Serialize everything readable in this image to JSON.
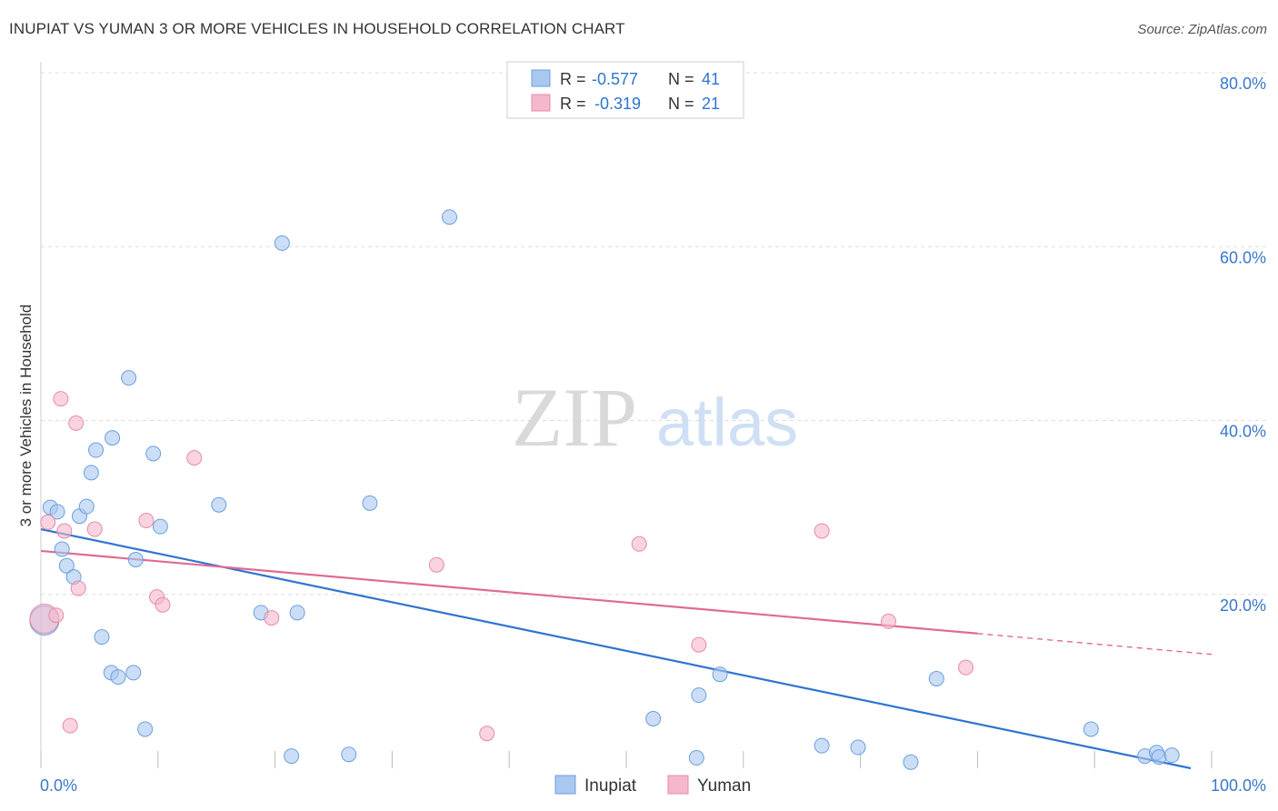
{
  "header": {
    "title": "INUPIAT VS YUMAN 3 OR MORE VEHICLES IN HOUSEHOLD CORRELATION CHART",
    "source": "Source: ZipAtlas.com"
  },
  "watermark": {
    "zip": "ZIP",
    "atlas": "atlas"
  },
  "legend_box": {
    "rows": [
      {
        "r_label": "R = ",
        "r_value": "-0.577",
        "n_label": "N = ",
        "n_value": "41",
        "color": "#a9c8f0"
      },
      {
        "r_label": "R = ",
        "r_value": "-0.319",
        "n_label": "N = ",
        "n_value": "21",
        "color": "#f5b8cb"
      }
    ]
  },
  "bottom_legend": [
    {
      "label": "Inupiat",
      "color": "#a9c8f0"
    },
    {
      "label": "Yuman",
      "color": "#f5b8cb"
    }
  ],
  "colors": {
    "inupiat_fill": "#a9c8f0",
    "inupiat_stroke": "#6a9fe0",
    "inupiat_line": "#2f74d0",
    "yuman_fill": "#f5b8cb",
    "yuman_stroke": "#e88aa8",
    "yuman_line": "#e06a93",
    "axis_text": "#3a78c9",
    "grid": "#dddddd"
  },
  "chart_data": {
    "type": "scatter",
    "title": "INUPIAT VS YUMAN 3 OR MORE VEHICLES IN HOUSEHOLD CORRELATION CHART",
    "xlabel": "",
    "ylabel": "3 or more Vehicles in Household",
    "xlim": [
      0,
      100
    ],
    "ylim": [
      0,
      80
    ],
    "x_tick_labels": [
      "0.0%",
      "100.0%"
    ],
    "y_ticks": [
      20,
      40,
      60,
      80
    ],
    "y_tick_labels": [
      "20.0%",
      "40.0%",
      "60.0%",
      "80.0%"
    ],
    "grid": true,
    "legend_position": "top-center",
    "series": [
      {
        "name": "Inupiat",
        "r": -0.577,
        "n": 41,
        "points": [
          [
            0.3,
            17.0
          ],
          [
            0.8,
            30.0
          ],
          [
            1.4,
            29.5
          ],
          [
            1.8,
            25.2
          ],
          [
            2.2,
            23.3
          ],
          [
            2.8,
            22.0
          ],
          [
            3.3,
            29.0
          ],
          [
            3.9,
            30.1
          ],
          [
            4.3,
            34.0
          ],
          [
            4.7,
            36.6
          ],
          [
            5.2,
            15.1
          ],
          [
            6.1,
            38.0
          ],
          [
            6.0,
            11.0
          ],
          [
            6.6,
            10.5
          ],
          [
            7.5,
            44.9
          ],
          [
            7.9,
            11.0
          ],
          [
            8.1,
            24.0
          ],
          [
            8.9,
            4.5
          ],
          [
            9.6,
            36.2
          ],
          [
            10.2,
            27.8
          ],
          [
            15.2,
            30.3
          ],
          [
            18.8,
            17.9
          ],
          [
            20.6,
            60.4
          ],
          [
            21.4,
            1.4
          ],
          [
            21.9,
            17.9
          ],
          [
            26.3,
            1.6
          ],
          [
            28.1,
            30.5
          ],
          [
            34.9,
            63.4
          ],
          [
            52.3,
            5.7
          ],
          [
            56.0,
            1.2
          ],
          [
            56.2,
            8.4
          ],
          [
            58.0,
            10.8
          ],
          [
            66.7,
            2.6
          ],
          [
            69.8,
            2.4
          ],
          [
            74.3,
            0.7
          ],
          [
            76.5,
            10.3
          ],
          [
            89.7,
            4.5
          ],
          [
            94.3,
            1.4
          ],
          [
            95.3,
            1.8
          ],
          [
            95.5,
            1.3
          ],
          [
            96.6,
            1.5
          ]
        ],
        "trend": [
          [
            0,
            27.5
          ],
          [
            100,
            -0.5
          ]
        ]
      },
      {
        "name": "Yuman",
        "r": -0.319,
        "n": 21,
        "points": [
          [
            0.3,
            17.2
          ],
          [
            0.6,
            28.3
          ],
          [
            1.3,
            17.6
          ],
          [
            1.7,
            42.5
          ],
          [
            2.0,
            27.3
          ],
          [
            2.5,
            4.9
          ],
          [
            3.0,
            39.7
          ],
          [
            3.2,
            20.7
          ],
          [
            4.6,
            27.5
          ],
          [
            9.0,
            28.5
          ],
          [
            9.9,
            19.7
          ],
          [
            10.4,
            18.8
          ],
          [
            13.1,
            35.7
          ],
          [
            19.7,
            17.3
          ],
          [
            33.8,
            23.4
          ],
          [
            38.1,
            4.0
          ],
          [
            51.1,
            25.8
          ],
          [
            56.2,
            14.2
          ],
          [
            66.7,
            27.3
          ],
          [
            72.4,
            16.9
          ],
          [
            79.0,
            11.6
          ]
        ],
        "trend": [
          [
            0,
            25.0
          ],
          [
            80,
            15.5
          ]
        ],
        "trend_dashed": [
          [
            80,
            15.5
          ],
          [
            100,
            13.1
          ]
        ]
      }
    ]
  }
}
